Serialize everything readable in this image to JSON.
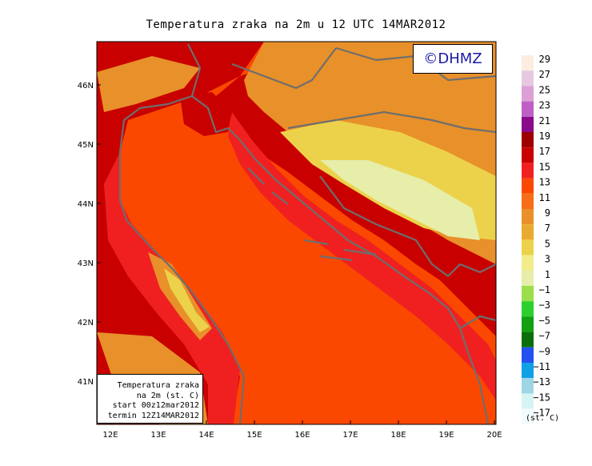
{
  "title": "Temperatura zraka na 2m u 12 UTC 14MAR2012",
  "watermark": "©DHMZ",
  "info_box": {
    "line1": "Temperatura zraka",
    "line2": "na 2m (st. C)",
    "line3": "start 00z12mar2012",
    "line4": "termin 12Z14MAR2012"
  },
  "axes": {
    "lon_labels": [
      "12E",
      "13E",
      "14E",
      "15E",
      "16E",
      "17E",
      "18E",
      "19E",
      "20E"
    ],
    "lat_labels": [
      "46N",
      "45N",
      "44N",
      "43N",
      "42N",
      "41N"
    ]
  },
  "legend": {
    "units": "(st. C)",
    "items": [
      {
        "label": "29",
        "color": "#fbeee0"
      },
      {
        "label": "27",
        "color": "#e6c9e0"
      },
      {
        "label": "25",
        "color": "#dca0d6"
      },
      {
        "label": "23",
        "color": "#bf5fc6"
      },
      {
        "label": "21",
        "color": "#8a0a8a"
      },
      {
        "label": "19",
        "color": "#9e0000"
      },
      {
        "label": "17",
        "color": "#c80000"
      },
      {
        "label": "15",
        "color": "#f02020"
      },
      {
        "label": "13",
        "color": "#fb4800"
      },
      {
        "label": "11",
        "color": "#f86e18"
      },
      {
        "label": "9",
        "color": "#e8902a"
      },
      {
        "label": "7",
        "color": "#eaaa30"
      },
      {
        "label": "5",
        "color": "#ecd24a"
      },
      {
        "label": "3",
        "color": "#f2ec8c"
      },
      {
        "label": "1",
        "color": "#e6eeaa"
      },
      {
        "label": "−1",
        "color": "#9ade4c"
      },
      {
        "label": "−3",
        "color": "#2cd02c"
      },
      {
        "label": "−5",
        "color": "#12a012"
      },
      {
        "label": "−7",
        "color": "#0a6e0a"
      },
      {
        "label": "−9",
        "color": "#2450f0"
      },
      {
        "label": "−11",
        "color": "#10a0e6"
      },
      {
        "label": "−13",
        "color": "#9ed6e6"
      },
      {
        "label": "−15",
        "color": "#d6f4f4"
      },
      {
        "label": "−17",
        "color": "#f2fcfc"
      }
    ]
  },
  "colors": {
    "sea": "#fb4800",
    "coastline": "#6e6e6e",
    "coast_band": "#f02020",
    "land_warm": "#c80000",
    "land_mid": "#e8902a",
    "land_cool": "#ecd24a",
    "land_cold": "#e6eeaa"
  }
}
